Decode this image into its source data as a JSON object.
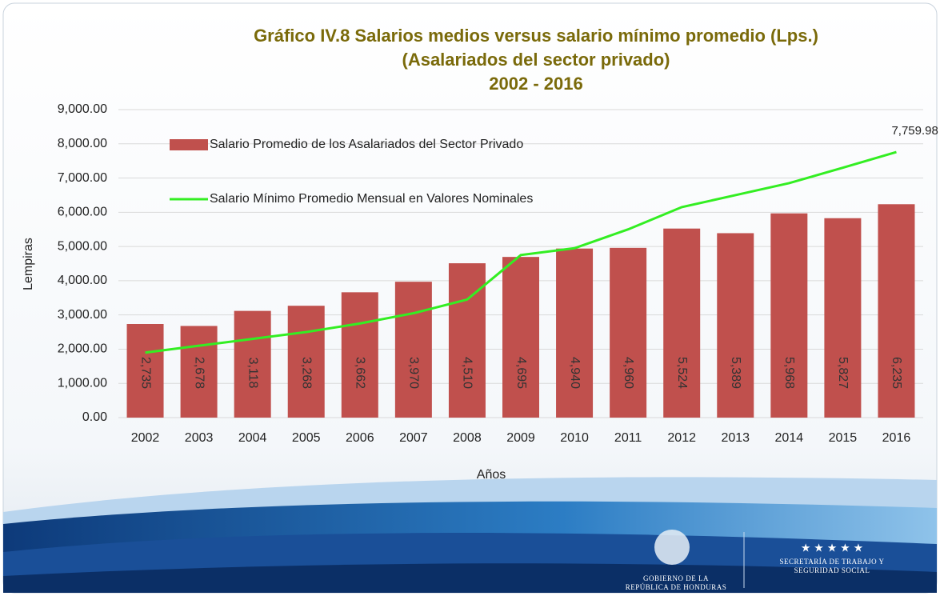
{
  "chart_data": {
    "type": "bar",
    "title": [
      "Gráfico IV.8 Salarios medios versus salario mínimo promedio (Lps.)",
      "(Asalariados del sector privado)",
      "2002 - 2016"
    ],
    "x_label": "Años",
    "y_label": "Lempiras",
    "categories": [
      "2002",
      "2003",
      "2004",
      "2005",
      "2006",
      "2007",
      "2008",
      "2009",
      "2010",
      "2011",
      "2012",
      "2013",
      "2014",
      "2015",
      "2016"
    ],
    "series": [
      {
        "name": "Salario Promedio de los Asalariados del Sector Privado",
        "type": "bar",
        "color": "#c0504d",
        "values": [
          2735,
          2678,
          3118,
          3268,
          3662,
          3970,
          4510,
          4695,
          4940,
          4960,
          5524,
          5389,
          5968,
          5827,
          6235
        ],
        "value_labels": [
          "2,735",
          "2,678",
          "3,118",
          "3,268",
          "3,662",
          "3,970",
          "4,510",
          "4,695",
          "4,940",
          "4,960",
          "5,524",
          "5,389",
          "5,968",
          "5,827",
          "6,235"
        ]
      },
      {
        "name": "Salario Mínimo Promedio Mensual en Valores Nominales",
        "type": "line",
        "color": "#33ee22",
        "values": [
          1900,
          2100,
          2300,
          2500,
          2750,
          3050,
          3450,
          4750,
          4950,
          5500,
          6150,
          6500,
          6850,
          7300,
          7759.98
        ],
        "value_labels": [
          null,
          null,
          null,
          null,
          null,
          null,
          null,
          null,
          null,
          null,
          null,
          null,
          null,
          null,
          "7,759.98"
        ]
      }
    ],
    "ylim": [
      0,
      9000
    ],
    "yticks": [
      {
        "value": 0,
        "label": "0.00"
      },
      {
        "value": 1000,
        "label": "1,000.00"
      },
      {
        "value": 2000,
        "label": "2,000.00"
      },
      {
        "value": 3000,
        "label": "3,000.00"
      },
      {
        "value": 4000,
        "label": "4,000.00"
      },
      {
        "value": 5000,
        "label": "5,000.00"
      },
      {
        "value": 6000,
        "label": "6,000.00"
      },
      {
        "value": 7000,
        "label": "7,000.00"
      },
      {
        "value": 8000,
        "label": "8,000.00"
      },
      {
        "value": 9000,
        "label": "9,000.00"
      }
    ],
    "grid": true,
    "legend": "top-left"
  },
  "footer": {
    "government": [
      "GOBIERNO DE LA",
      "REPÚBLICA DE HONDURAS"
    ],
    "ministry": [
      "SECRETARÍA DE TRABAJO Y",
      "SEGURIDAD SOCIAL"
    ]
  }
}
